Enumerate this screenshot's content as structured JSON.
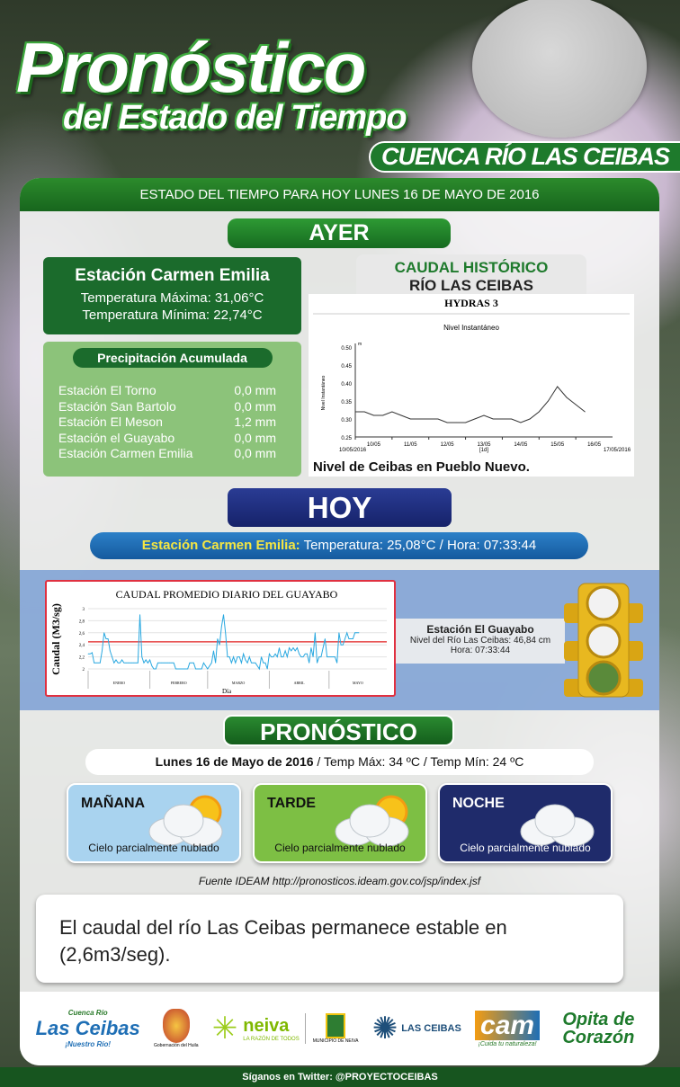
{
  "poster": {
    "title": "Pronóstico",
    "subtitle": "del Estado del Tiempo",
    "region": "CUENCA RÍO LAS CEIBAS",
    "header": "ESTADO DEL TIEMPO  PARA HOY  LUNES 16 DE MAYO  DE 2016"
  },
  "ayer": {
    "label": "AYER",
    "station": {
      "name": "Estación Carmen Emilia",
      "tmax": "Temperatura  Máxima: 31,06°C",
      "tmin": "Temperatura  Mínima: 22,74°C"
    },
    "precip": {
      "title": "Precipitación  Acumulada",
      "rows": [
        {
          "station": "Estación El Torno",
          "value": "0,0 mm"
        },
        {
          "station": "Estación San Bartolo",
          "value": "0,0 mm"
        },
        {
          "station": "Estación El Meson",
          "value": "1,2 mm"
        },
        {
          "station": "Estación el Guayabo",
          "value": "0,0 mm"
        },
        {
          "station": "Estación Carmen Emilia",
          "value": "0,0 mm"
        }
      ]
    },
    "historico": {
      "line1": "CAUDAL HISTÓRICO",
      "line2": "RÍO LAS CEIBAS",
      "caption": "Nivel de Ceibas en Pueblo Nuevo."
    }
  },
  "hoy": {
    "label": "HOY",
    "station_label": "Estación Carmen Emilia:",
    "reading": " Temperatura:  25,08°C  / Hora:  07:33:44",
    "guayabo": {
      "name": "Estación  El Guayabo",
      "level": "Nivel del Río  Las Ceibas: 46,84 cm",
      "time": "Hora: 07:33:44"
    },
    "traffic_light": {
      "active": "green",
      "colors": {
        "green": "#5a8a3a",
        "off": "#f2f2f2",
        "housing": "#e8b820"
      }
    }
  },
  "pronostico": {
    "label": "PRONÓSTICO",
    "date": "Lunes 16 de Mayo de 2016",
    "temps": " / Temp Máx:  34 ºC    /    Temp Mín:  24 ºC",
    "periods": [
      {
        "label": "MAÑANA",
        "desc": "Cielo  parcialmente  nublado",
        "icon": "sun-cloud-icon",
        "color": "#a9d3ef"
      },
      {
        "label": "TARDE",
        "desc": "Cielo  parcialmente  nublado",
        "icon": "sun-cloud-icon",
        "color": "#7dbf44"
      },
      {
        "label": "NOCHE",
        "desc": "Cielo  parcialmente  nublado",
        "icon": "cloud-icon",
        "color": "#1f2b6b"
      }
    ],
    "source": "Fuente IDEAM  http://pronosticos.ideam.gov.co/jsp/index.jsf"
  },
  "message": "El caudal del río Las Ceibas permanece estable en (2,6m3/seg).",
  "logos": {
    "ceibas": "Las Ceibas",
    "ceibas_small": "Cuenca Río",
    "ceibas_tag": "¡Nuestro Río!",
    "huila": "Gobernación del Huila",
    "neiva": "neiva",
    "neiva_tag": "LA RAZÓN DE TODOS",
    "municipio": "MUNICIPIO DE NEIVA",
    "lasceibas": "LAS CEIBAS",
    "cam": "cam",
    "cam_tag": "¡Cuida tu naturaleza!",
    "opita": "Opita de Corazón"
  },
  "footer": "Síganos en Twitter: @PROYECTOCEIBAS",
  "chart_data": [
    {
      "type": "line",
      "title": "HYDRAS 3",
      "subtitle": "Nivel Instantáneo",
      "ylabel": "Nivel Instantáneo",
      "yunit": "m",
      "ylim": [
        0.25,
        0.5
      ],
      "yticks": [
        "0.25",
        "0.30",
        "0.35",
        "0.40",
        "0.45",
        "0.50"
      ],
      "xticks": [
        "10/05",
        "11/05",
        "12/05",
        "13/05",
        "14/05",
        "15/05",
        "16/05"
      ],
      "xstart": "10/05/2016",
      "xend": "17/05/2016",
      "xlabel": "[1d]",
      "x": [
        "10/05 00h",
        "10/05 06h",
        "10/05 12h",
        "10/05 18h",
        "11/05 00h",
        "11/05 06h",
        "11/05 12h",
        "11/05 18h",
        "12/05 00h",
        "12/05 06h",
        "12/05 12h",
        "12/05 18h",
        "13/05 00h",
        "13/05 06h",
        "13/05 12h",
        "13/05 18h",
        "14/05 00h",
        "14/05 06h",
        "14/05 12h",
        "14/05 18h",
        "15/05 00h",
        "15/05 06h",
        "15/05 12h",
        "15/05 18h",
        "16/05 00h",
        "16/05 06h"
      ],
      "y": [
        0.32,
        0.32,
        0.31,
        0.31,
        0.32,
        0.31,
        0.3,
        0.3,
        0.3,
        0.3,
        0.29,
        0.29,
        0.29,
        0.3,
        0.31,
        0.3,
        0.3,
        0.3,
        0.29,
        0.3,
        0.32,
        0.35,
        0.39,
        0.36,
        0.34,
        0.32
      ]
    },
    {
      "type": "line",
      "title": "CAUDAL PROMEDIO DIARIO DEL GUAYABO",
      "ylabel": "Caudal (M3/sg)",
      "xlabel": "Día",
      "ylim": [
        2,
        3
      ],
      "yticks": [
        "2",
        "2,2",
        "2,4",
        "2,6",
        "2,8",
        "3"
      ],
      "months": [
        "ENERO",
        "FEBRERO",
        "MARZO",
        "ABRIL",
        "MAYO"
      ],
      "reference_line": 2.45,
      "colors": {
        "series": "#29a8e0",
        "reference": "#e02020"
      },
      "values": [
        2.25,
        2.25,
        2.27,
        2.1,
        2.1,
        2.1,
        2.1,
        2.3,
        2.6,
        2.5,
        2.5,
        2.3,
        2.2,
        2.1,
        2.15,
        2.1,
        2.1,
        2.15,
        2.1,
        2.1,
        2.1,
        2.1,
        2.1,
        2.1,
        2.1,
        2.1,
        2.9,
        2.2,
        2.1,
        2.15,
        2.1,
        2.15,
        2.05,
        2.0,
        2.0,
        2.1,
        2.1,
        2.1,
        2.1,
        2.1,
        2.1,
        2.1,
        2.1,
        2.1,
        2.0,
        2.0,
        2.0,
        2.0,
        2.0,
        2.0,
        2.0,
        2.1,
        2.1,
        2.1,
        2.0,
        2.0,
        2.0,
        2.0,
        2.1,
        2.05,
        2.0,
        2.05,
        2.1,
        2.3,
        2.1,
        2.5,
        2.4,
        2.7,
        2.9,
        2.6,
        2.2,
        2.2,
        2.1,
        2.2,
        2.1,
        2.2,
        2.2,
        2.1,
        2.25,
        2.15,
        2.1,
        2.2,
        2.1,
        2.1,
        2.1,
        2.05,
        2.0,
        2.2,
        2.1,
        2.1,
        2.0,
        2.25,
        2.2,
        2.2,
        2.25,
        2.2,
        2.35,
        2.2,
        2.2,
        2.3,
        2.2,
        2.35,
        2.3,
        2.35,
        2.3,
        2.35,
        2.25,
        2.2,
        2.2,
        2.25,
        2.25,
        2.1,
        2.35,
        2.2,
        2.6,
        2.1,
        2.2,
        2.2,
        2.35,
        2.5,
        2.2,
        2.2,
        2.2,
        2.2,
        2.2,
        2.1,
        2.6,
        2.4,
        2.4,
        2.5,
        2.6,
        2.5,
        2.5,
        2.5,
        2.6,
        2.6,
        2.6
      ]
    }
  ]
}
